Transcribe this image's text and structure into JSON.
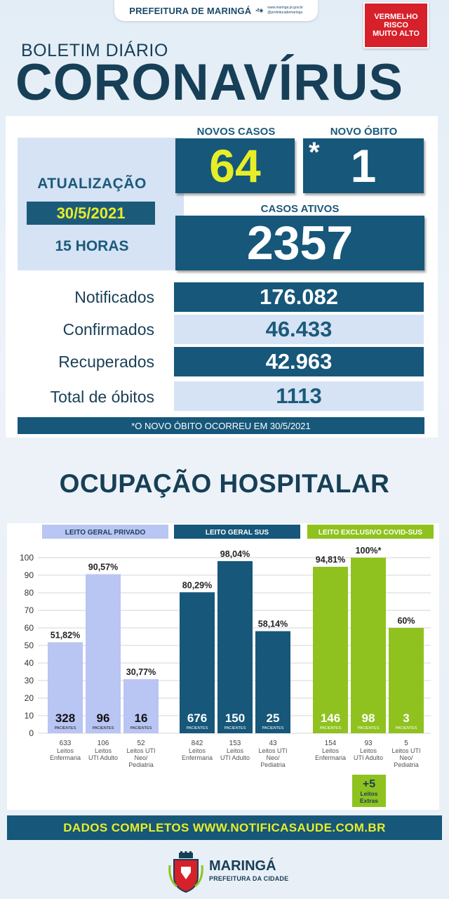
{
  "header": {
    "prefeitura": "PREFEITURA DE MARINGÁ",
    "site": "www.maringa.pr.gov.br",
    "social": "@prefeiturademaringa",
    "risk": [
      "VERMELHO",
      "RISCO",
      "MUITO ALTO"
    ]
  },
  "title": {
    "boletim": "BOLETIM DIÁRIO",
    "corona": "CORONAVÍRUS"
  },
  "update": {
    "label": "ATUALIZAÇÃO",
    "date": "30/5/2021",
    "hour": "15 HORAS"
  },
  "highlights": {
    "novos_casos_label": "NOVOS CASOS",
    "novos_casos": "64",
    "novo_obito_label": "NOVO ÓBITO",
    "novo_obito_mark": "*",
    "novo_obito": "1",
    "casos_ativos_label": "CASOS ATIVOS",
    "casos_ativos": "2357"
  },
  "stats": [
    {
      "label": "Notificados",
      "value": "176.082"
    },
    {
      "label": "Confirmados",
      "value": "46.433"
    },
    {
      "label": "Recuperados",
      "value": "42.963"
    },
    {
      "label": "Total de óbitos",
      "value": "1113"
    }
  ],
  "note": "*O NOVO ÓBITO OCORREU EM 30/5/2021",
  "section_title": "OCUPAÇÃO HOSPITALAR",
  "chart_data": {
    "type": "bar",
    "ylim": [
      0,
      100
    ],
    "yticks": [
      "0",
      "10",
      "20",
      "30",
      "40",
      "50",
      "60",
      "70",
      "80",
      "90",
      "100"
    ],
    "groups": [
      {
        "title": "LEITO GERAL PRIVADO",
        "bar_color": "#b9c5f2",
        "title_bg": "#b9c5f2",
        "title_color": "#1a3f56",
        "bars": [
          {
            "value": 51.82,
            "pct_label": "51,82%",
            "patients": "328",
            "beds": "633",
            "category": [
              "Leitos",
              "Enfermaria"
            ]
          },
          {
            "value": 90.57,
            "pct_label": "90,57%",
            "patients": "96",
            "beds": "106",
            "category": [
              "Leitos",
              "UTI Adulto"
            ]
          },
          {
            "value": 30.77,
            "pct_label": "30,77%",
            "patients": "16",
            "beds": "52",
            "category": [
              "Leitos UTI",
              "Neo/",
              "Pediatria"
            ]
          }
        ]
      },
      {
        "title": "LEITO GERAL SUS",
        "bar_color": "#16577a",
        "title_bg": "#16577a",
        "title_color": "#ffffff",
        "bars": [
          {
            "value": 80.29,
            "pct_label": "80,29%",
            "patients": "676",
            "beds": "842",
            "category": [
              "Leitos",
              "Enfermaria"
            ]
          },
          {
            "value": 98.04,
            "pct_label": "98,04%",
            "patients": "150",
            "beds": "153",
            "category": [
              "Leitos",
              "UTI Adulto"
            ]
          },
          {
            "value": 58.14,
            "pct_label": "58,14%",
            "patients": "25",
            "beds": "43",
            "category": [
              "Leitos UTI",
              "Neo/",
              "Pediatria"
            ]
          }
        ]
      },
      {
        "title": "LEITO EXCLUSIVO COVID-SUS",
        "bar_color": "#8fc21f",
        "title_bg": "#8fc21f",
        "title_color": "#ffffff",
        "bars": [
          {
            "value": 94.81,
            "pct_label": "94,81%",
            "patients": "146",
            "beds": "154",
            "category": [
              "Leitos",
              "Enfermaria"
            ]
          },
          {
            "value": 100,
            "pct_label": "100%*",
            "patients": "98",
            "beds": "93",
            "category": [
              "Leitos",
              "UTI Adulto"
            ]
          },
          {
            "value": 60,
            "pct_label": "60%",
            "patients": "3",
            "beds": "5",
            "category": [
              "Leitos UTI",
              "Neo/",
              "Pediatria"
            ]
          }
        ]
      }
    ],
    "patients_label": "PACIENTES",
    "extra": {
      "value": "+5",
      "label": [
        "Leitos",
        "Extras"
      ]
    }
  },
  "footer": {
    "dados": "DADOS COMPLETOS  WWW.NOTIFICASAUDE.COM.BR",
    "brand": "MARINGÁ",
    "brand_sub": "PREFEITURA DA CIDADE"
  }
}
